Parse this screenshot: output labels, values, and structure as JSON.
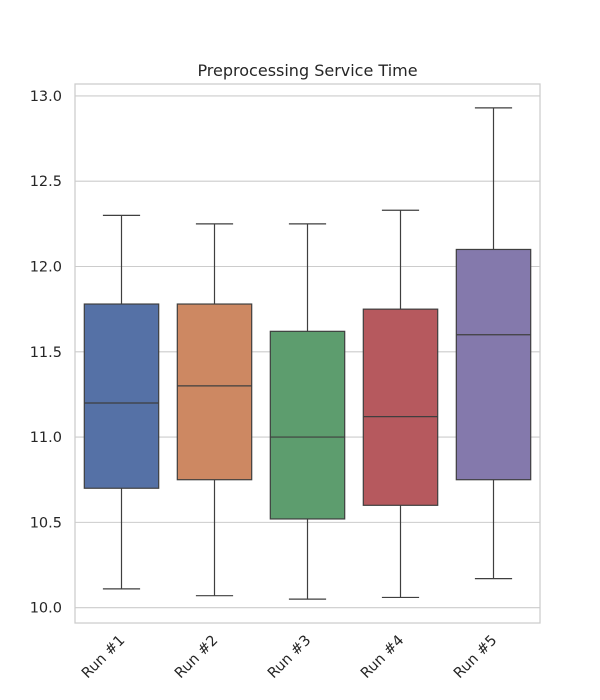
{
  "chart_data": {
    "type": "box",
    "title": "Preprocessing Service Time",
    "xlabel": "",
    "ylabel": "",
    "ylim": [
      9.91,
      13.07
    ],
    "yticks": [
      "10.0",
      "10.5",
      "11.0",
      "11.5",
      "12.0",
      "12.5",
      "13.0"
    ],
    "grid": true,
    "legend": "none",
    "categories": [
      "Run #1",
      "Run #2",
      "Run #3",
      "Run #4",
      "Run #5"
    ],
    "boxes": [
      {
        "name": "Run #1",
        "min": 10.11,
        "q1": 10.7,
        "median": 11.2,
        "q3": 11.78,
        "max": 12.3,
        "color": "#5571a6"
      },
      {
        "name": "Run #2",
        "min": 10.07,
        "q1": 10.75,
        "median": 11.3,
        "q3": 11.78,
        "max": 12.25,
        "color": "#cd8862"
      },
      {
        "name": "Run #3",
        "min": 10.05,
        "q1": 10.52,
        "median": 11.0,
        "q3": 11.62,
        "max": 12.25,
        "color": "#5d9d6e"
      },
      {
        "name": "Run #4",
        "min": 10.06,
        "q1": 10.6,
        "median": 11.12,
        "q3": 11.75,
        "max": 12.33,
        "color": "#b6595e"
      },
      {
        "name": "Run #5",
        "min": 10.17,
        "q1": 10.75,
        "median": 11.6,
        "q3": 12.1,
        "max": 12.93,
        "color": "#8479ac"
      }
    ]
  }
}
